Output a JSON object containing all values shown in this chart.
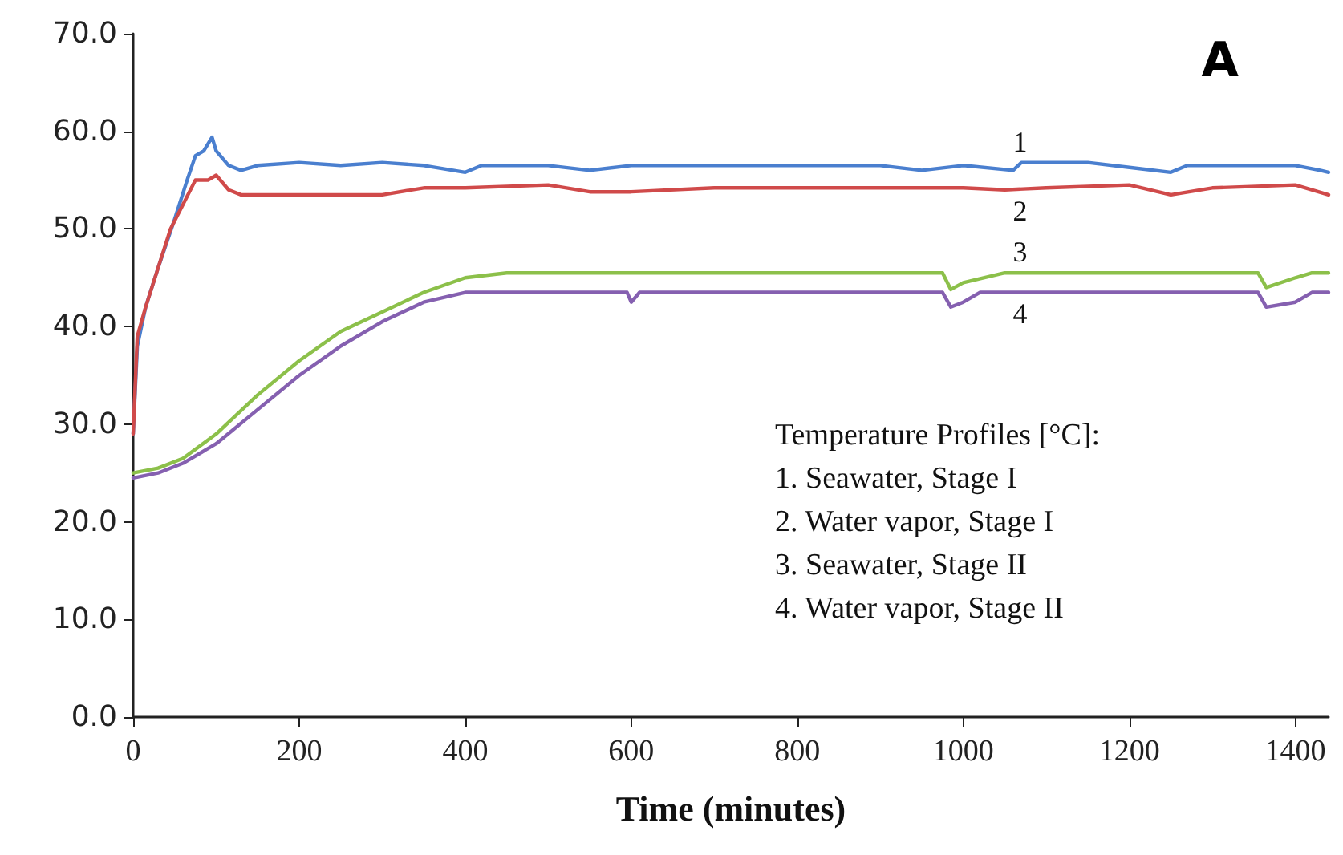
{
  "chart_data": {
    "type": "line",
    "title": "A",
    "xlabel": "Time (minutes)",
    "grid": false,
    "marker": "none",
    "line_style": "solid",
    "xlim": [
      0,
      1440
    ],
    "xticks": [
      0,
      200,
      400,
      600,
      800,
      1000,
      1200,
      1400
    ],
    "ylim": [
      0,
      70
    ],
    "yticks": [
      {
        "value": 0,
        "label": "0.0"
      },
      {
        "value": 10,
        "label": "10.0"
      },
      {
        "value": 20,
        "label": "20.0"
      },
      {
        "value": 30,
        "label": "30.0"
      },
      {
        "value": 40,
        "label": "40.0"
      },
      {
        "value": 50,
        "label": "50.0"
      },
      {
        "value": 60,
        "label": "60.0"
      },
      {
        "value": 70,
        "label": "70.0"
      }
    ],
    "annotations": [
      "Temperature Profiles [°C]:",
      "1. Seawater, Stage I",
      "2. Water vapor, Stage I",
      "3. Seawater, Stage II",
      "4. Water vapor, Stage II"
    ],
    "series": [
      {
        "name": "1",
        "color": "#4a7fcf",
        "x": [
          0,
          5,
          15,
          30,
          50,
          65,
          75,
          85,
          95,
          100,
          115,
          130,
          150,
          200,
          250,
          300,
          350,
          400,
          420,
          500,
          550,
          600,
          700,
          800,
          900,
          950,
          1000,
          1060,
          1070,
          1150,
          1200,
          1250,
          1270,
          1350,
          1400,
          1430,
          1440
        ],
        "values": [
          29,
          38,
          42,
          46,
          51,
          55,
          57.5,
          58,
          59.4,
          58,
          56.5,
          56,
          56.5,
          56.8,
          56.5,
          56.8,
          56.5,
          55.8,
          56.5,
          56.5,
          56,
          56.5,
          56.5,
          56.5,
          56.5,
          56,
          56.5,
          56,
          56.8,
          56.8,
          56.3,
          55.8,
          56.5,
          56.5,
          56.5,
          56,
          55.8
        ]
      },
      {
        "name": "2",
        "color": "#d04a4a",
        "x": [
          0,
          5,
          15,
          30,
          45,
          60,
          75,
          90,
          100,
          115,
          130,
          200,
          300,
          350,
          400,
          500,
          550,
          600,
          700,
          800,
          900,
          1000,
          1050,
          1100,
          1200,
          1250,
          1300,
          1400,
          1440
        ],
        "values": [
          29,
          39,
          42,
          46,
          50,
          52.5,
          55,
          55,
          55.5,
          54,
          53.5,
          53.5,
          53.5,
          54.2,
          54.2,
          54.5,
          53.8,
          53.8,
          54.2,
          54.2,
          54.2,
          54.2,
          54,
          54.2,
          54.5,
          53.5,
          54.2,
          54.5,
          53.5
        ]
      },
      {
        "name": "3",
        "color": "#8cc04a",
        "x": [
          0,
          30,
          60,
          100,
          150,
          200,
          250,
          300,
          350,
          400,
          450,
          500,
          600,
          700,
          800,
          900,
          975,
          985,
          1000,
          1050,
          1100,
          1200,
          1300,
          1355,
          1365,
          1400,
          1420,
          1440
        ],
        "values": [
          25,
          25.5,
          26.5,
          29,
          33,
          36.5,
          39.5,
          41.5,
          43.5,
          45,
          45.5,
          45.5,
          45.5,
          45.5,
          45.5,
          45.5,
          45.5,
          43.8,
          44.5,
          45.5,
          45.5,
          45.5,
          45.5,
          45.5,
          44,
          45,
          45.5,
          45.5
        ]
      },
      {
        "name": "4",
        "color": "#8560b0",
        "x": [
          0,
          30,
          60,
          100,
          150,
          200,
          250,
          300,
          350,
          400,
          500,
          595,
          600,
          610,
          700,
          800,
          975,
          985,
          1000,
          1020,
          1100,
          1200,
          1355,
          1365,
          1400,
          1420,
          1440
        ],
        "values": [
          24.5,
          25,
          26,
          28,
          31.5,
          35,
          38,
          40.5,
          42.5,
          43.5,
          43.5,
          43.5,
          42.5,
          43.5,
          43.5,
          43.5,
          43.5,
          42,
          42.5,
          43.5,
          43.5,
          43.5,
          43.5,
          42,
          42.5,
          43.5,
          43.5
        ]
      }
    ]
  }
}
